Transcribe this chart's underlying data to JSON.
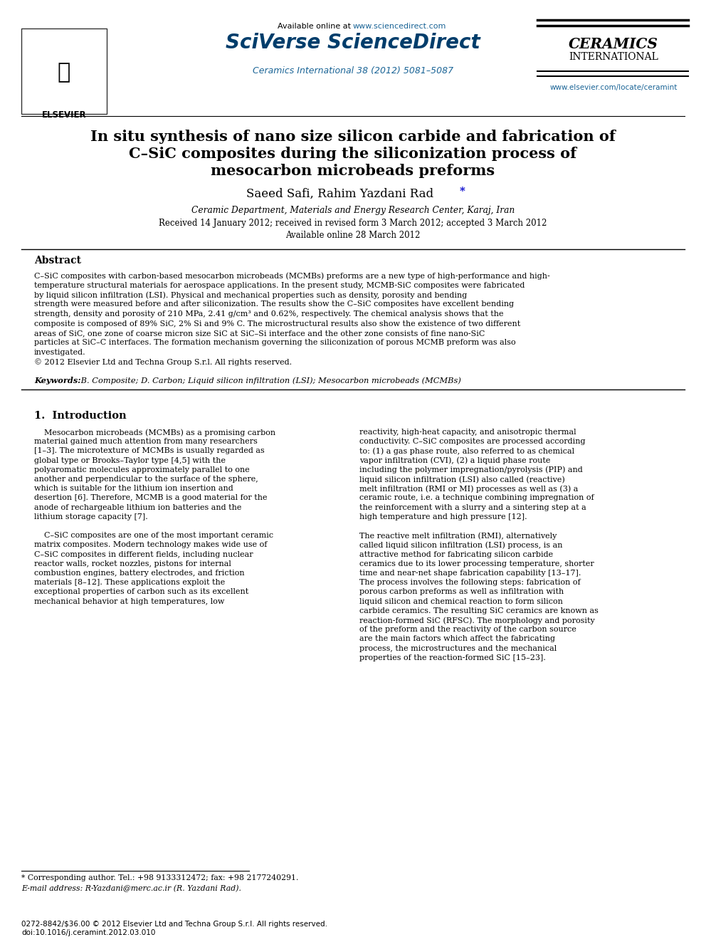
{
  "page_bg": "#ffffff",
  "header": {
    "available_text": "Available online at www.sciencedirect.com",
    "available_url_color": "#1a6496",
    "sciverse_text": "SciVerse ScienceDirect",
    "sciverse_color": "#003366",
    "journal_ref": "Ceramics International 38 (2012) 5081–5087",
    "journal_ref_color": "#1a6496",
    "ceramics_line1": "CERAMICS",
    "ceramics_line2": "INTERNATIONAL",
    "ceramics_color": "#000000",
    "website": "www.elsevier.com/locate/ceramint",
    "website_color": "#1a6496",
    "elsevier_text": "ELSEVIER"
  },
  "title_line1": "In situ synthesis of nano size silicon carbide and fabrication of",
  "title_line2": "C–SiC composites during the siliconization process of",
  "title_line3": "mesocarbon microbeads preforms",
  "authors": "Saeed Safi, Rahim Yazdani Rad",
  "authors_star": "*",
  "affiliation": "Ceramic Department, Materials and Energy Research Center, Karaj, Iran",
  "received_text": "Received 14 January 2012; received in revised form 3 March 2012; accepted 3 March 2012",
  "available_online": "Available online 28 March 2012",
  "abstract_title": "Abstract",
  "abstract_body": "C–SiC composites with carbon-based mesocarbon microbeads (MCMBs) preforms are a new type of high-performance and high-temperature structural materials for aerospace applications. In the present study, MCMB-SiC composites were fabricated by liquid silicon infiltration (LSI). Physical and mechanical properties such as density, porosity and bending strength were measured before and after siliconization. The results show the C–SiC composites have excellent bending strength, density and porosity of 210 MPa, 2.41 g/cm³ and 0.62%, respectively. The chemical analysis shows that the composite is composed of 89% SiC, 2% Si and 9% C. The microstructural results also show the existence of two different areas of SiC, one zone of coarse micron size SiC at SiC–Si interface and the other zone consists of fine nano-SiC particles at SiC–C interfaces. The formation mechanism governing the siliconization of porous MCMB preform was also investigated.\n© 2012 Elsevier Ltd and Techna Group S.r.l. All rights reserved.",
  "keywords_label": "Keywords:",
  "keywords_text": " B. Composite; D. Carbon; Liquid silicon infiltration (LSI); Mesocarbon microbeads (MCMBs)",
  "section1_title": "1.  Introduction",
  "section1_left": "Mesocarbon microbeads (MCMBs) as a promising carbon material gained much attention from many researchers [1–3]. The microtexture of MCMBs is usually regarded as global type or Brooks–Taylor type [4,5] with the polyaromatic molecules approximately parallel to one another and perpendicular to the surface of the sphere, which is suitable for the lithium ion insertion and desertion [6]. Therefore, MCMB is a good material for the anode of rechargeable lithium ion batteries and the lithium storage capacity [7].\n\nC–SiC composites are one of the most important ceramic matrix composites. Modern technology makes wide use of C–SiC composites in different fields, including nuclear reactor walls, rocket nozzles, pistons for internal combustion engines, battery electrodes, and friction materials [8–12]. These applications exploit the exceptional properties of carbon such as its excellent mechanical behavior at high temperatures, low",
  "section1_right": "reactivity, high-heat capacity, and anisotropic thermal conductivity. C–SiC composites are processed according to: (1) a gas phase route, also referred to as chemical vapor infiltration (CVI), (2) a liquid phase route including the polymer impregnation/pyrolysis (PIP) and liquid silicon infiltration (LSI) also called (reactive) melt infiltration (RMI or MI) processes as well as (3) a ceramic route, i.e. a technique combining impregnation of the reinforcement with a slurry and a sintering step at a high temperature and high pressure [12].\n\nThe reactive melt infiltration (RMI), alternatively called liquid silicon infiltration (LSI) process, is an attractive method for fabricating silicon carbide ceramics due to its lower processing temperature, shorter time and near-net shape fabrication capability [13–17]. The process involves the following steps: fabrication of porous carbon preforms as well as infiltration with liquid silicon and chemical reaction to form silicon carbide ceramics. The resulting SiC ceramics are known as reaction-formed SiC (RFSC). The morphology and porosity of the preform and the reactivity of the carbon source are the main factors which affect the fabricating process, the microstructures and the mechanical properties of the reaction-formed SiC [15–23].",
  "footnote_star": "* Corresponding author. Tel.: +98 9133312472; fax: +98 2177240291.",
  "footnote_email": "E-mail address: R-Yazdani@merc.ac.ir (R. Yazdani Rad).",
  "footer_left": "0272-8842/$36.00 © 2012 Elsevier Ltd and Techna Group S.r.l. All rights reserved.",
  "footer_doi": "doi:10.1016/j.ceramint.2012.03.010"
}
